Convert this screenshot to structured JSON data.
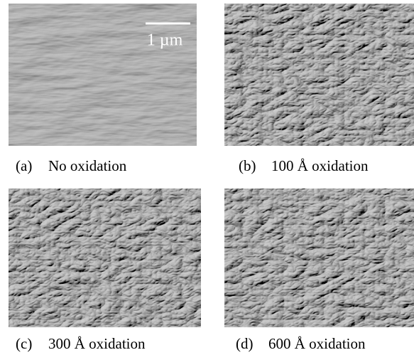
{
  "figure": {
    "panels": [
      {
        "label": "(a)",
        "caption": "No oxidation"
      },
      {
        "label": "(b)",
        "caption": "100 Å oxidation"
      },
      {
        "label": "(c)",
        "caption": "300 Å oxidation"
      },
      {
        "label": "(d)",
        "caption": "600 Å oxidation"
      }
    ],
    "scale_bar": "1 µm"
  }
}
